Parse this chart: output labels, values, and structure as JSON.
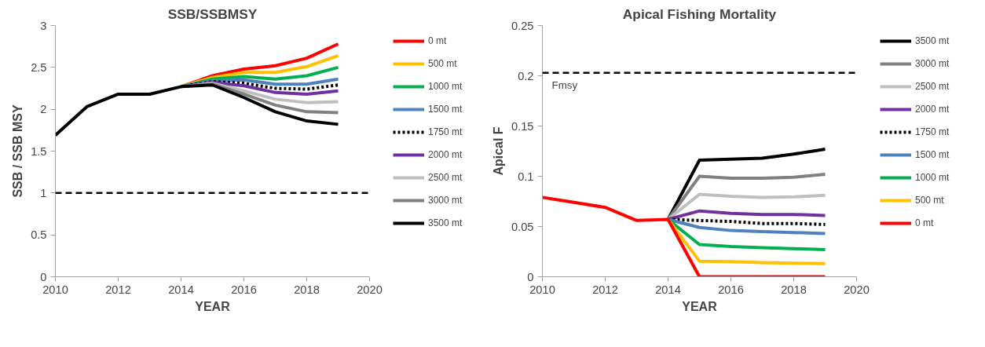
{
  "chart_data": [
    {
      "type": "line",
      "title": "SSB/SSBMSY",
      "xlabel": "YEAR",
      "ylabel": "SSB / SSB MSY",
      "x": [
        2010,
        2011,
        2012,
        2013,
        2014,
        2015,
        2016,
        2017,
        2018,
        2019
      ],
      "xlim": [
        2010,
        2020
      ],
      "xticks": [
        2010,
        2012,
        2014,
        2016,
        2018,
        2020
      ],
      "ylim": [
        0,
        3
      ],
      "yticks": [
        0,
        0.5,
        1,
        1.5,
        2,
        2.5,
        3
      ],
      "grid": false,
      "legend": "right",
      "marker": "none",
      "line_style": "solid",
      "ref_lines": [
        {
          "axis": "y",
          "value": 1,
          "color": "#000000",
          "line_style": "dashed"
        }
      ],
      "series": [
        {
          "name": "0 mt",
          "color": "#ff0000",
          "values": [
            null,
            null,
            null,
            null,
            2.27,
            2.4,
            2.48,
            2.52,
            2.61,
            2.78
          ]
        },
        {
          "name": "500 mt",
          "color": "#ffc000",
          "values": [
            null,
            null,
            null,
            null,
            2.27,
            2.38,
            2.44,
            2.44,
            2.51,
            2.64
          ]
        },
        {
          "name": "1000 mt",
          "color": "#00b050",
          "values": [
            null,
            null,
            null,
            null,
            2.27,
            2.36,
            2.39,
            2.36,
            2.4,
            2.5
          ]
        },
        {
          "name": "1500 mt",
          "color": "#4f81bd",
          "values": [
            null,
            null,
            null,
            null,
            2.27,
            2.34,
            2.35,
            2.3,
            2.3,
            2.36
          ]
        },
        {
          "name": "1750 mt",
          "color": "#000000",
          "line_style": "dotted",
          "values": [
            null,
            null,
            null,
            null,
            2.27,
            2.33,
            2.31,
            2.25,
            2.24,
            2.29
          ]
        },
        {
          "name": "2000 mt",
          "color": "#7030a0",
          "values": [
            null,
            null,
            null,
            null,
            2.27,
            2.32,
            2.28,
            2.2,
            2.18,
            2.22
          ]
        },
        {
          "name": "2500 mt",
          "color": "#bfbfbf",
          "values": [
            null,
            null,
            null,
            null,
            2.27,
            2.31,
            2.22,
            2.12,
            2.08,
            2.09
          ]
        },
        {
          "name": "3000 mt",
          "color": "#808080",
          "values": [
            null,
            null,
            null,
            null,
            2.27,
            2.3,
            2.18,
            2.05,
            1.97,
            1.96
          ]
        },
        {
          "name": "3500 mt",
          "color": "#000000",
          "values": [
            1.69,
            2.03,
            2.18,
            2.18,
            2.27,
            2.29,
            2.14,
            1.97,
            1.86,
            1.82
          ]
        }
      ]
    },
    {
      "type": "line",
      "title": "Apical Fishing Mortality",
      "xlabel": "YEAR",
      "ylabel": "Apical F",
      "x": [
        2010,
        2011,
        2012,
        2013,
        2014,
        2015,
        2016,
        2017,
        2018,
        2019
      ],
      "xlim": [
        2010,
        2020
      ],
      "xticks": [
        2010,
        2012,
        2014,
        2016,
        2018,
        2020
      ],
      "ylim": [
        0,
        0.25
      ],
      "yticks": [
        0,
        0.05,
        0.1,
        0.15,
        0.2,
        0.25
      ],
      "grid": false,
      "legend": "right",
      "marker": "none",
      "line_style": "solid",
      "ref_lines": [
        {
          "axis": "y",
          "value": 0.203,
          "label": "Fmsy",
          "color": "#000000",
          "line_style": "dashed"
        }
      ],
      "series": [
        {
          "name": "3500 mt",
          "color": "#000000",
          "values": [
            null,
            null,
            null,
            null,
            0.057,
            0.116,
            0.117,
            0.118,
            0.122,
            0.127
          ]
        },
        {
          "name": "3000 mt",
          "color": "#808080",
          "values": [
            null,
            null,
            null,
            null,
            0.057,
            0.1,
            0.098,
            0.098,
            0.099,
            0.102
          ]
        },
        {
          "name": "2500 mt",
          "color": "#bfbfbf",
          "values": [
            null,
            null,
            null,
            null,
            0.057,
            0.082,
            0.08,
            0.079,
            0.0795,
            0.081
          ]
        },
        {
          "name": "2000 mt",
          "color": "#7030a0",
          "values": [
            null,
            null,
            null,
            null,
            0.057,
            0.0655,
            0.063,
            0.062,
            0.062,
            0.061
          ]
        },
        {
          "name": "1750 mt",
          "color": "#000000",
          "line_style": "dotted",
          "values": [
            null,
            null,
            null,
            null,
            0.057,
            0.056,
            0.055,
            0.053,
            0.053,
            0.052
          ]
        },
        {
          "name": "1500 mt",
          "color": "#4f81bd",
          "values": [
            null,
            null,
            null,
            null,
            0.057,
            0.049,
            0.046,
            0.045,
            0.044,
            0.043
          ]
        },
        {
          "name": "1000 mt",
          "color": "#00b050",
          "values": [
            null,
            null,
            null,
            null,
            0.057,
            0.032,
            0.03,
            0.029,
            0.028,
            0.027
          ]
        },
        {
          "name": "500 mt",
          "color": "#ffc000",
          "values": [
            null,
            null,
            null,
            null,
            0.057,
            0.0155,
            0.015,
            0.014,
            0.0135,
            0.013
          ]
        },
        {
          "name": "0 mt",
          "color": "#ff0000",
          "values": [
            0.079,
            0.074,
            0.069,
            0.056,
            0.057,
            0,
            0,
            0,
            0,
            0
          ]
        }
      ]
    }
  ]
}
